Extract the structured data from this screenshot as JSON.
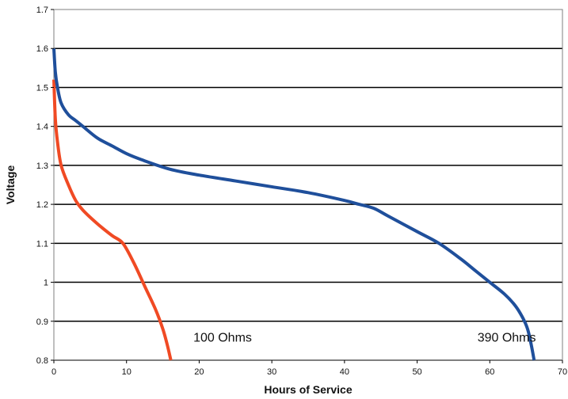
{
  "chart_data": {
    "type": "line",
    "title": "",
    "xlabel": "Hours of Service",
    "ylabel": "Voltage",
    "xlim": [
      0,
      70
    ],
    "ylim": [
      0.8,
      1.7
    ],
    "x_ticks": [
      0,
      10,
      20,
      30,
      40,
      50,
      60,
      70
    ],
    "y_ticks": [
      0.8,
      0.9,
      1,
      1.1,
      1.2,
      1.3,
      1.4,
      1.5,
      1.6,
      1.7
    ],
    "x_tick_labels": [
      "0",
      "10",
      "20",
      "30",
      "40",
      "50",
      "60",
      "70"
    ],
    "y_tick_labels": [
      "0.8",
      "0.9",
      "1",
      "1.1",
      "1.2",
      "1.3",
      "1.4",
      "1.5",
      "1.6",
      "1.7"
    ],
    "grid": "horizontal",
    "legend": "none",
    "series": [
      {
        "name": "100 Ohms",
        "color": "#f04a24",
        "x": [
          0,
          0.2,
          0.5,
          1,
          2,
          3,
          4,
          6,
          8,
          9.5,
          11,
          12.5,
          14,
          15,
          15.6,
          16.1
        ],
        "y": [
          1.52,
          1.42,
          1.36,
          1.3,
          1.25,
          1.21,
          1.185,
          1.15,
          1.12,
          1.1,
          1.05,
          0.99,
          0.93,
          0.88,
          0.84,
          0.8
        ]
      },
      {
        "name": "390 Ohms",
        "color": "#1f4f9b",
        "x": [
          0,
          0.2,
          0.5,
          1,
          2,
          3,
          4,
          6,
          8,
          10,
          12,
          16,
          20,
          25,
          30,
          35,
          40,
          42,
          44,
          46,
          50,
          53,
          56,
          58,
          60,
          62,
          63.5,
          64.5,
          65.2,
          65.7,
          66.1
        ],
        "y": [
          1.6,
          1.54,
          1.5,
          1.46,
          1.43,
          1.415,
          1.4,
          1.37,
          1.35,
          1.33,
          1.315,
          1.29,
          1.275,
          1.26,
          1.245,
          1.23,
          1.21,
          1.2,
          1.19,
          1.17,
          1.13,
          1.1,
          1.06,
          1.03,
          1.0,
          0.97,
          0.94,
          0.91,
          0.88,
          0.84,
          0.8
        ]
      }
    ],
    "annotations": [
      {
        "text": "100 Ohms",
        "x": 19.2,
        "y": 0.86
      },
      {
        "text": "390 Ohms",
        "x": 58.3,
        "y": 0.86
      }
    ]
  }
}
